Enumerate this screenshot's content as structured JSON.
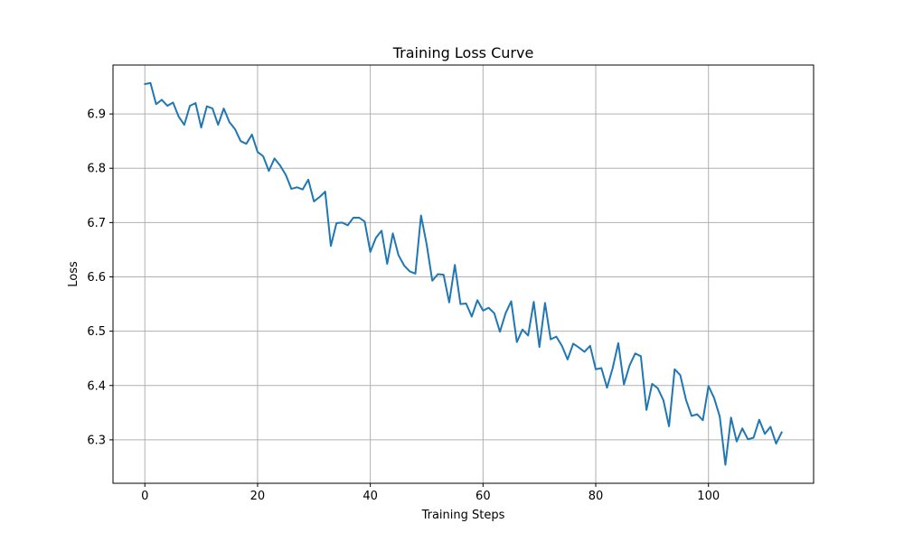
{
  "chart_data": {
    "type": "line",
    "title": "Training Loss Curve",
    "xlabel": "Training Steps",
    "ylabel": "Loss",
    "xlim": [
      -5.65,
      118.65
    ],
    "ylim": [
      6.22,
      6.99
    ],
    "xticks": [
      0,
      20,
      40,
      60,
      80,
      100
    ],
    "yticks": [
      6.3,
      6.4,
      6.5,
      6.6,
      6.7,
      6.8,
      6.9
    ],
    "ytick_labels": [
      "6.3",
      "6.4",
      "6.5",
      "6.6",
      "6.7",
      "6.8",
      "6.9"
    ],
    "grid": true,
    "legend": "none",
    "line_color": "#1f77b4",
    "series": [
      {
        "values": [
          6.955,
          6.957,
          6.918,
          6.926,
          6.915,
          6.921,
          6.895,
          6.88,
          6.915,
          6.92,
          6.875,
          6.914,
          6.91,
          6.88,
          6.91,
          6.885,
          6.872,
          6.85,
          6.845,
          6.862,
          6.83,
          6.822,
          6.795,
          6.818,
          6.805,
          6.788,
          6.762,
          6.765,
          6.761,
          6.779,
          6.739,
          6.747,
          6.757,
          6.657,
          6.699,
          6.7,
          6.695,
          6.709,
          6.709,
          6.702,
          6.646,
          6.672,
          6.685,
          6.624,
          6.68,
          6.64,
          6.621,
          6.61,
          6.606,
          6.713,
          6.66,
          6.593,
          6.605,
          6.604,
          6.553,
          6.622,
          6.55,
          6.551,
          6.527,
          6.557,
          6.538,
          6.543,
          6.533,
          6.499,
          6.533,
          6.555,
          6.48,
          6.503,
          6.492,
          6.554,
          6.471,
          6.552,
          6.485,
          6.49,
          6.473,
          6.448,
          6.477,
          6.47,
          6.462,
          6.473,
          6.43,
          6.432,
          6.396,
          6.432,
          6.478,
          6.402,
          6.437,
          6.459,
          6.454,
          6.355,
          6.403,
          6.395,
          6.373,
          6.325,
          6.43,
          6.419,
          6.374,
          6.344,
          6.347,
          6.336,
          6.399,
          6.377,
          6.343,
          6.254,
          6.341,
          6.297,
          6.321,
          6.301,
          6.304,
          6.337,
          6.311,
          6.324,
          6.293,
          6.314
        ]
      }
    ]
  }
}
